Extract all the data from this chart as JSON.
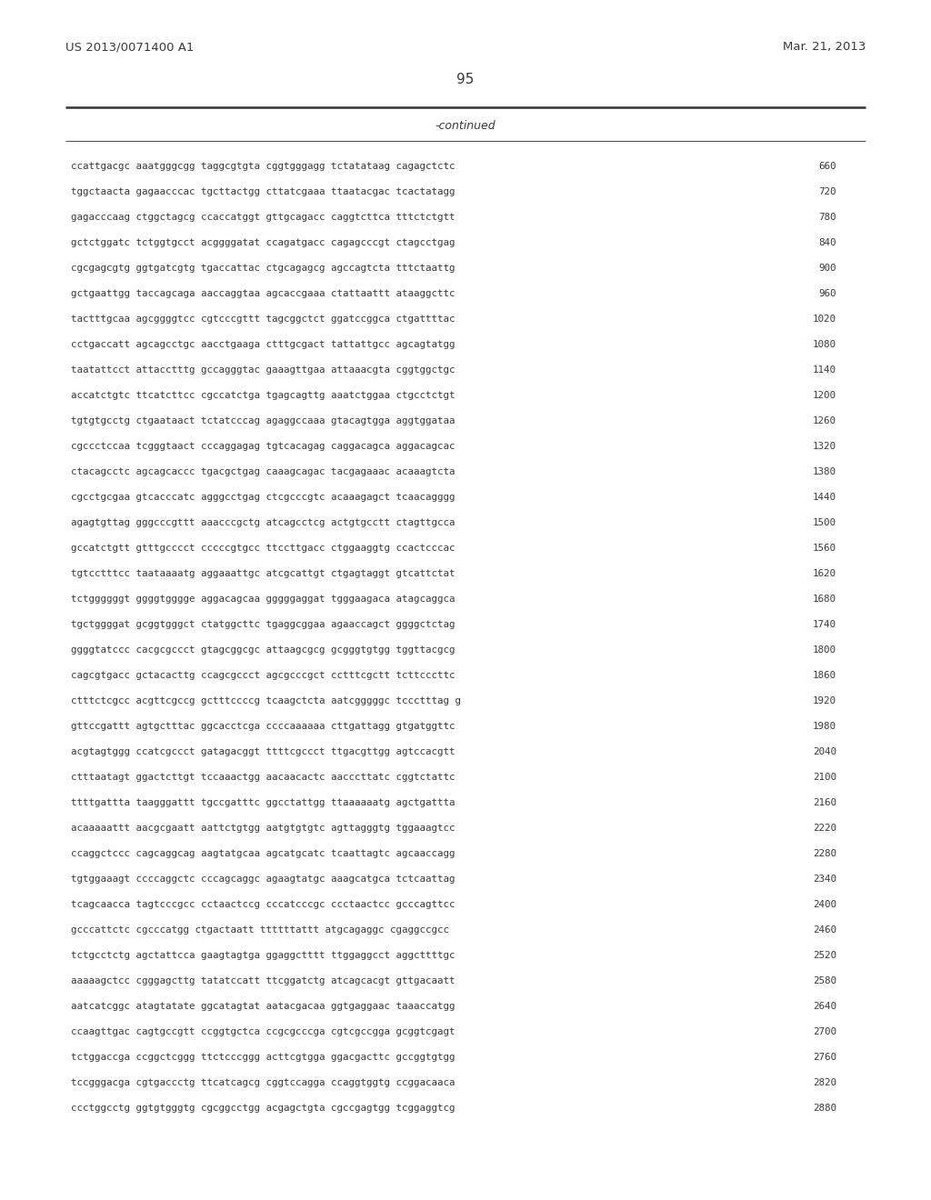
{
  "header_left": "US 2013/0071400 A1",
  "header_right": "Mar. 21, 2013",
  "page_number": "95",
  "continued_label": "-continued",
  "background_color": "#ffffff",
  "text_color": "#3a3a3a",
  "sequence_lines": [
    [
      "ccattgacgc",
      "aaatgggcgg",
      "taggcgtgta",
      "cggtgggagg",
      "tctatataag",
      "cagagctctc",
      "660"
    ],
    [
      "tggctaacta",
      "gagaacccac",
      "tgcttactgg",
      "cttatcgaaa",
      "ttaatacgac",
      "tcactatagg",
      "720"
    ],
    [
      "gagacccaag",
      "ctggctagcg",
      "ccaccatggt",
      "gttgcagacc",
      "caggtcttca",
      "tttctctgtt",
      "780"
    ],
    [
      "gctctggatc",
      "tctggtgcct",
      "acggggatat",
      "ccagatgacc",
      "cagagcccgt",
      "ctagcctgag",
      "840"
    ],
    [
      "cgcgagcgtg",
      "ggtgatcgtg",
      "tgaccattac",
      "ctgcagagcg",
      "agccagtcta",
      "tttctaattg",
      "900"
    ],
    [
      "gctgaattgg",
      "taccagcaga",
      "aaccaggtaa",
      "agcaccgaaa",
      "ctattaattt",
      "ataaggcttc",
      "960"
    ],
    [
      "tactttgcaa",
      "agcggggtcc",
      "cgtcccgttt",
      "tagcggctct",
      "ggatccggca",
      "ctgattttac",
      "1020"
    ],
    [
      "cctgaccatt",
      "agcagcctgc",
      "aacctgaaga",
      "ctttgcgact",
      "tattattgcc",
      "agcagtatgg",
      "1080"
    ],
    [
      "taatattcct",
      "attacctttg",
      "gccagggtac",
      "gaaagttgaa",
      "attaaacgta",
      "cggtggctgc",
      "1140"
    ],
    [
      "accatctgtc",
      "ttcatcttcc",
      "cgccatctga",
      "tgagcagttg",
      "aaatctggaa",
      "ctgcctctgt",
      "1200"
    ],
    [
      "tgtgtgcctg",
      "ctgaataact",
      "tctatcccag",
      "agaggccaaa",
      "gtacagtgga",
      "aggtggataa",
      "1260"
    ],
    [
      "cgccctccaa",
      "tcgggtaact",
      "cccaggagag",
      "tgtcacagag",
      "caggacagca",
      "aggacagcac",
      "1320"
    ],
    [
      "ctacagcctc",
      "agcagcaccc",
      "tgacgctgag",
      "caaagcagac",
      "tacgagaaac",
      "acaaagtcta",
      "1380"
    ],
    [
      "cgcctgcgaa",
      "gtcacccatc",
      "agggcctgag",
      "ctcgcccgtc",
      "acaaagagct",
      "tcaacagggg",
      "1440"
    ],
    [
      "agagtgttag",
      "gggcccgttt",
      "aaacccgctg",
      "atcagcctcg",
      "actgtgcctt",
      "ctagttgcca",
      "1500"
    ],
    [
      "gccatctgtt",
      "gtttgcccct",
      "cccccgtgcc",
      "ttccttgacc",
      "ctggaaggtg",
      "ccactcccac",
      "1560"
    ],
    [
      "tgtcctttcc",
      "taataaaatg",
      "aggaaattgc",
      "atcgcattgt",
      "ctgagtaggt",
      "gtcattctat",
      "1620"
    ],
    [
      "tctggggggt",
      "ggggtgggge",
      "aggacagcaa",
      "gggggaggat",
      "tgggaagaca",
      "atagcaggca",
      "1680"
    ],
    [
      "tgctggggat",
      "gcggtgggct",
      "ctatggcttc",
      "tgaggcggaa",
      "agaaccagct",
      "ggggctctag",
      "1740"
    ],
    [
      "ggggtatccc",
      "cacgcgccct",
      "gtagcggcgc",
      "attaagcgcg",
      "gcgggtgtgg",
      "tggttacgcg",
      "1800"
    ],
    [
      "cagcgtgacc",
      "gctacacttg",
      "ccagcgccct",
      "agcgcccgct",
      "cctttcgctt",
      "tcttcccttc",
      "1860"
    ],
    [
      "ctttctcgcc",
      "acgttcgccg",
      "gctttccccg",
      "tcaagctcta",
      "aatcgggggc",
      "tccctttag g",
      "1920"
    ],
    [
      "gttccgattt",
      "agtgctttac",
      "ggcacctcga",
      "ccccaaaaaa",
      "cttgattagg",
      "gtgatggttc",
      "1980"
    ],
    [
      "acgtagtggg",
      "ccatcgccct",
      "gatagacggt",
      "ttttcgccct",
      "ttgacgttgg",
      "agtccacgtt",
      "2040"
    ],
    [
      "ctttaatagt",
      "ggactcttgt",
      "tccaaactgg",
      "aacaacactc",
      "aacccttatc",
      "cggtctattc",
      "2100"
    ],
    [
      "ttttgattta",
      "taagggattt",
      "tgccgatttc",
      "ggcctattgg",
      "ttaaaaaatg",
      "agctgattta",
      "2160"
    ],
    [
      "acaaaaattt",
      "aacgcgaatt",
      "aattctgtgg",
      "aatgtgtgtc",
      "agttagggtg",
      "tggaaagtcc",
      "2220"
    ],
    [
      "ccaggctccc",
      "cagcaggcag",
      "aagtatgcaa",
      "agcatgcatc",
      "tcaattagtc",
      "agcaaccagg",
      "2280"
    ],
    [
      "tgtggaaagt",
      "ccccaggctc",
      "cccagcaggc",
      "agaagtatgc",
      "aaagcatgca",
      "tctcaattag",
      "2340"
    ],
    [
      "tcagcaacca",
      "tagtcccgcc",
      "cctaactccg",
      "cccatcccgc",
      "ccctaactcc",
      "gcccagttcc",
      "2400"
    ],
    [
      "gcccattctc",
      "cgcccatgg",
      "ctgactaatt",
      "ttttttattt",
      "atgcagaggc",
      "cgaggccgcc",
      "2460"
    ],
    [
      "tctgcctctg",
      "agctattcca",
      "gaagtagtga",
      "ggaggctttt",
      "ttggaggcct",
      "aggcttttgc",
      "2520"
    ],
    [
      "aaaaagctcc",
      "cgggagcttg",
      "tatatccatt",
      "ttcggatctg",
      "atcagcacgt",
      "gttgacaatt",
      "2580"
    ],
    [
      "aatcatcggc",
      "atagtatate",
      "ggcatagtat",
      "aatacgacaa",
      "ggtgaggaac",
      "taaaccatgg",
      "2640"
    ],
    [
      "ccaagttgac",
      "cagtgccgtt",
      "ccggtgctca",
      "ccgcgcccga",
      "cgtcgccgga",
      "gcggtcgagt",
      "2700"
    ],
    [
      "tctggaccga",
      "ccggctcggg",
      "ttctcccggg",
      "acttcgtgga",
      "ggacgacttc",
      "gccggtgtgg",
      "2760"
    ],
    [
      "tccgggacga",
      "cgtgaccctg",
      "ttcatcagcg",
      "cggtccagga",
      "ccaggtggtg",
      "ccggacaaca",
      "2820"
    ],
    [
      "ccctggcctg",
      "ggtgtgggtg",
      "cgcggcctgg",
      "acgagctgta",
      "cgccgagtgg",
      "tcggaggtcg",
      "2880"
    ]
  ]
}
